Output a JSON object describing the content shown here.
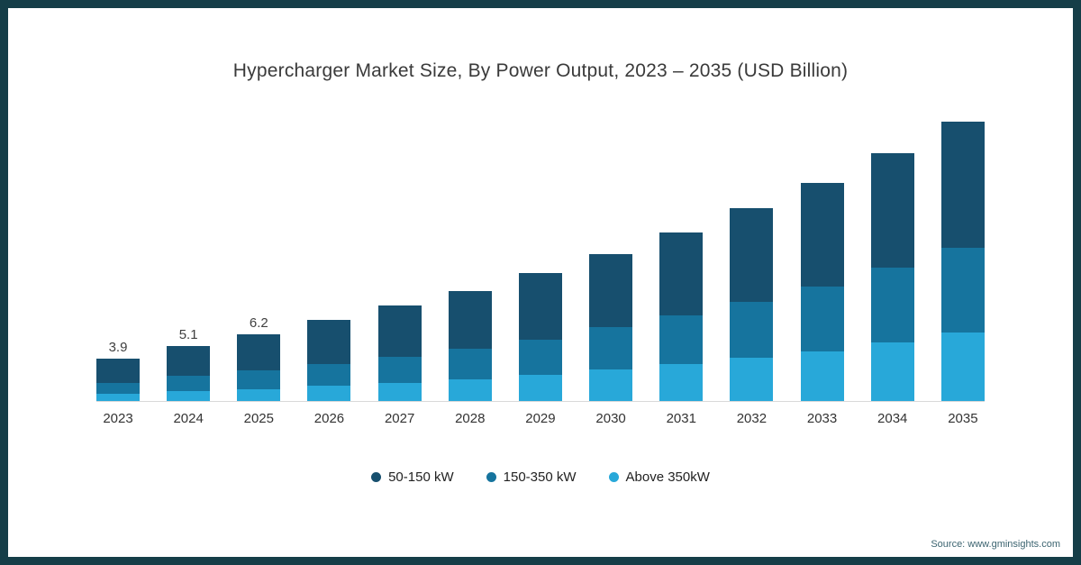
{
  "title": "Hypercharger Market Size, By Power Output, 2023 – 2035 (USD Billion)",
  "source": "Source: www.gminsights.com",
  "frame_color": "#153e48",
  "chart_data": {
    "type": "bar",
    "stacked": true,
    "title": "Hypercharger Market Size, By Power Output, 2023 – 2035 (USD Billion)",
    "xlabel": "",
    "ylabel": "USD Billion",
    "ylim": [
      0,
      27
    ],
    "grid": false,
    "legend_position": "bottom",
    "categories": [
      "2023",
      "2024",
      "2025",
      "2026",
      "2027",
      "2028",
      "2029",
      "2030",
      "2031",
      "2032",
      "2033",
      "2034",
      "2035"
    ],
    "series": [
      {
        "name": "50-150 kW",
        "color": "#174f6e",
        "values": [
          2.2,
          2.8,
          3.4,
          4.1,
          4.7,
          5.4,
          6.1,
          6.8,
          7.7,
          8.6,
          9.6,
          10.6,
          11.6
        ]
      },
      {
        "name": "150-350 kW",
        "color": "#16749e",
        "values": [
          1.0,
          1.4,
          1.7,
          2.0,
          2.4,
          2.8,
          3.3,
          3.9,
          4.5,
          5.2,
          6.0,
          6.9,
          7.9
        ]
      },
      {
        "name": "Above 350kW",
        "color": "#28a8d9",
        "values": [
          0.7,
          0.9,
          1.1,
          1.4,
          1.7,
          2.0,
          2.4,
          2.9,
          3.4,
          4.0,
          4.6,
          5.4,
          6.3
        ]
      }
    ],
    "totals": [
      3.9,
      5.1,
      6.2,
      7.5,
      8.8,
      10.2,
      11.8,
      13.6,
      15.6,
      17.8,
      20.2,
      22.9,
      25.8
    ],
    "bar_labels": [
      "3.9",
      "5.1",
      "6.2",
      "",
      "",
      "",
      "",
      "",
      "",
      "",
      "",
      "",
      ""
    ]
  }
}
